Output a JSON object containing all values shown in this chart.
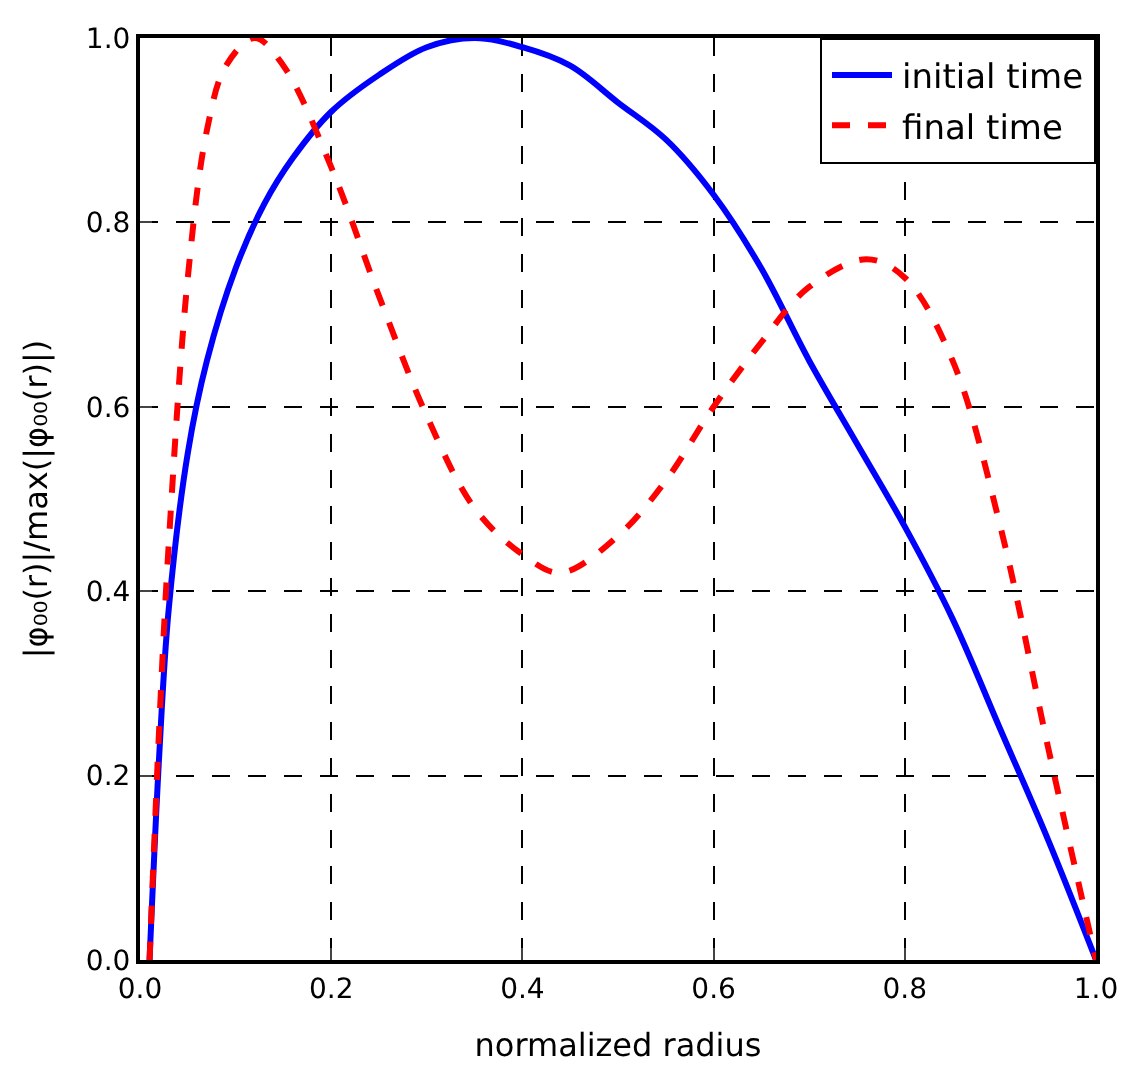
{
  "chart_data": {
    "type": "line",
    "xlabel": "normalized radius",
    "ylabel": "|φ₀₀(r)|/max(|φ₀₀(r)|)",
    "xlim": [
      0,
      1
    ],
    "ylim": [
      0,
      1
    ],
    "xticks": [
      {
        "value": 0,
        "label": "0.0"
      },
      0.2,
      0.4,
      0.6,
      0.8,
      {
        "value": 1,
        "label": "1.0"
      }
    ],
    "yticks": [
      {
        "value": 0,
        "label": "0.0"
      },
      0.2,
      0.4,
      0.6,
      0.8,
      {
        "value": 1,
        "label": "1.0"
      }
    ],
    "grid": true,
    "legend": "top right",
    "series": [
      {
        "name": "initial time",
        "color": "#0000ff",
        "line_style": "solid",
        "x": [
          0.01,
          0.02,
          0.03,
          0.05,
          0.07,
          0.1,
          0.13,
          0.16,
          0.2,
          0.25,
          0.3,
          0.35,
          0.4,
          0.45,
          0.5,
          0.55,
          0.6,
          0.65,
          0.7,
          0.75,
          0.8,
          0.85,
          0.9,
          0.95,
          1.0
        ],
        "values": [
          0.0,
          0.22,
          0.38,
          0.55,
          0.65,
          0.75,
          0.82,
          0.87,
          0.92,
          0.96,
          0.99,
          1.0,
          0.99,
          0.97,
          0.93,
          0.89,
          0.83,
          0.75,
          0.65,
          0.56,
          0.47,
          0.37,
          0.25,
          0.13,
          0.0
        ]
      },
      {
        "name": "final time",
        "color": "#ff0000",
        "line_style": "dashed",
        "x": [
          0.01,
          0.02,
          0.03,
          0.05,
          0.07,
          0.09,
          0.12,
          0.15,
          0.2,
          0.25,
          0.3,
          0.35,
          0.4,
          0.44,
          0.5,
          0.55,
          0.6,
          0.65,
          0.7,
          0.76,
          0.8,
          0.85,
          0.9,
          0.95,
          1.0
        ],
        "values": [
          0.0,
          0.25,
          0.45,
          0.74,
          0.9,
          0.97,
          1.0,
          0.97,
          0.86,
          0.72,
          0.59,
          0.49,
          0.44,
          0.42,
          0.46,
          0.52,
          0.6,
          0.67,
          0.73,
          0.76,
          0.74,
          0.65,
          0.47,
          0.23,
          0.0
        ]
      }
    ]
  }
}
